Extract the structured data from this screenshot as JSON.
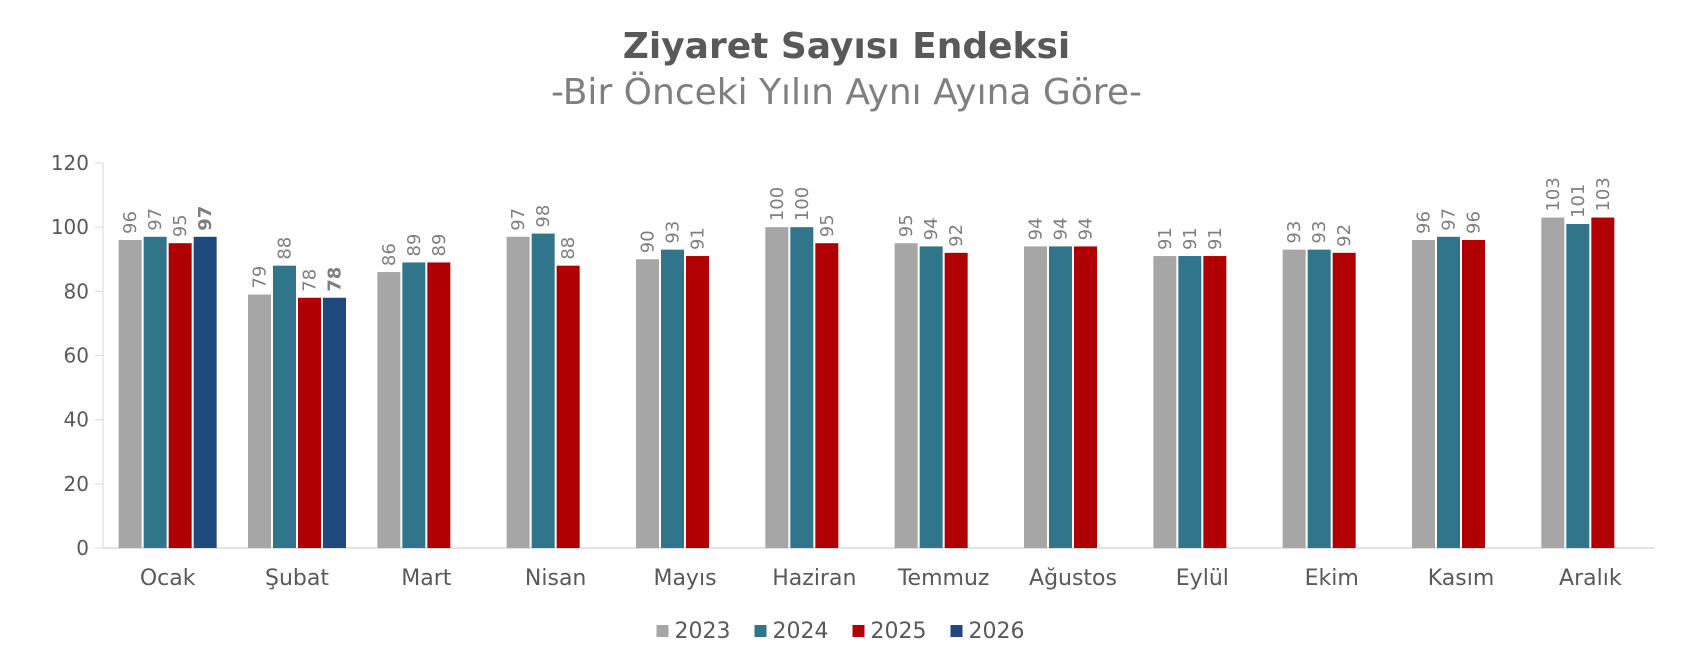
{
  "chart_data": {
    "type": "bar",
    "title": "Ziyaret Sayısı Endeksi",
    "subtitle": "-Bir Önceki Yılın Aynı Ayına Göre-",
    "categories": [
      "Ocak",
      "Şubat",
      "Mart",
      "Nisan",
      "Mayıs",
      "Haziran",
      "Temmuz",
      "Ağustos",
      "Eylül",
      "Ekim",
      "Kasım",
      "Aralık"
    ],
    "series": [
      {
        "name": "2023",
        "color": "#a6a6a6",
        "values": [
          96,
          79,
          86,
          97,
          90,
          100,
          95,
          94,
          91,
          93,
          96,
          103
        ]
      },
      {
        "name": "2024",
        "color": "#31758a",
        "values": [
          97,
          88,
          89,
          98,
          93,
          100,
          94,
          94,
          91,
          93,
          97,
          101
        ]
      },
      {
        "name": "2025",
        "color": "#b00004",
        "values": [
          95,
          78,
          89,
          88,
          91,
          95,
          92,
          94,
          91,
          92,
          96,
          103
        ]
      },
      {
        "name": "2026",
        "color": "#1f487c",
        "values": [
          97,
          78,
          null,
          null,
          null,
          null,
          null,
          null,
          null,
          null,
          null,
          null
        ],
        "bold_labels": true
      }
    ],
    "ylim": [
      0,
      120
    ],
    "yticks": [
      0,
      20,
      40,
      60,
      80,
      100,
      120
    ],
    "legend": "bottom",
    "grid": false
  }
}
